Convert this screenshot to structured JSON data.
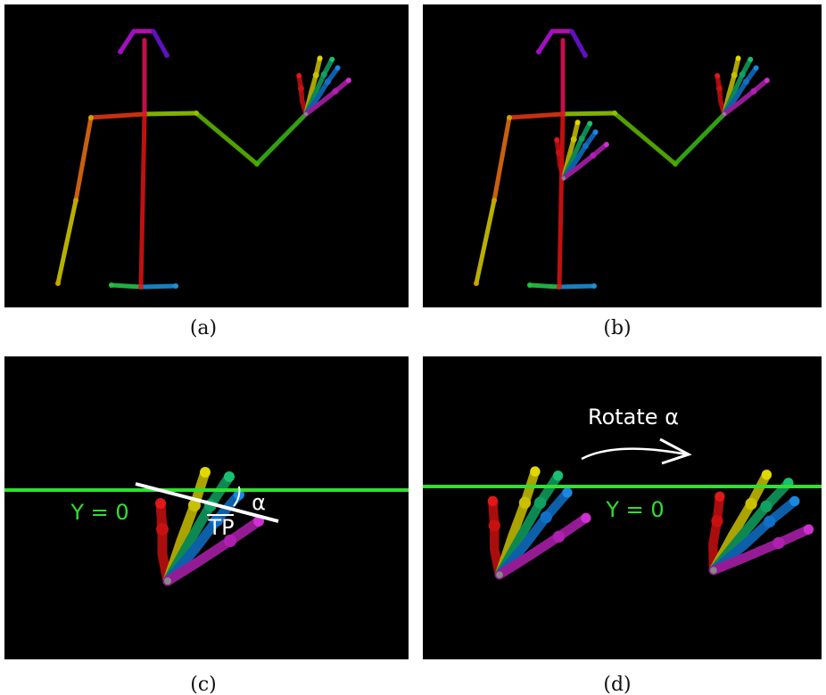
{
  "panels": [
    {
      "caption": "(a)"
    },
    {
      "caption": "(b)"
    },
    {
      "caption": "(c)",
      "annotations": {
        "y_axis_label": "Y = 0",
        "angle": "α",
        "segment": "TP"
      }
    },
    {
      "caption": "(d)",
      "annotations": {
        "action": "Rotate α",
        "y_axis_label": "Y = 0"
      }
    }
  ]
}
